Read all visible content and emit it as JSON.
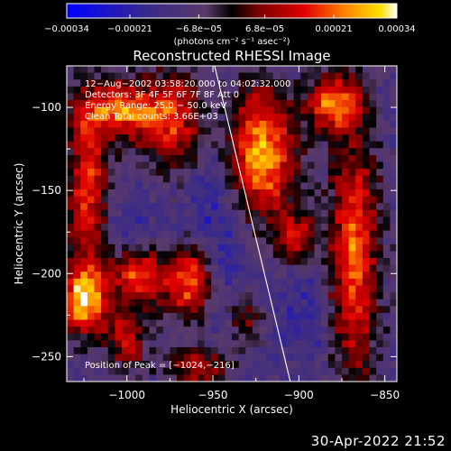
{
  "chart_data": {
    "type": "heatmap",
    "title": "Reconstructed RHESSI Image",
    "xlabel": "Heliocentric X (arcsec)",
    "ylabel": "Heliocentric Y (arcsec)",
    "xlim": [
      -1035,
      -843
    ],
    "ylim": [
      -265,
      -75
    ],
    "x_ticks": [
      -1000,
      -950,
      -900,
      -850
    ],
    "x_tick_labels": [
      "−1000",
      "−950",
      "−900",
      "−850"
    ],
    "y_ticks": [
      -100,
      -150,
      -200,
      -250
    ],
    "y_tick_labels": [
      "−100",
      "−150",
      "−200",
      "−250"
    ],
    "colorbar": {
      "min": -0.00034,
      "max": 0.00034,
      "tick_values": [
        -0.00034,
        -0.00021,
        -6.8e-05,
        6.8e-05,
        0.00021,
        0.00034
      ],
      "tick_labels": [
        "−0.00034",
        "−0.00021",
        "−6.8e−05",
        "6.8e−05",
        "0.00021",
        "0.00034"
      ],
      "unit_label": "(photons cm⁻² s⁻¹ asec⁻²)"
    },
    "annotations": [
      "12−Aug−2002 03:58:20.000 to 04:02:32.000",
      "Detectors: 3F 4F 5F 6F 7F 8F  Att 0",
      "Energy Range: 25.0 − 50.0 keV",
      "Clean     Total counts: 3.66E+03"
    ],
    "peak_label": "Position of Peak = [−1024,−216]",
    "peak_position": [
      -1024,
      -216
    ],
    "limb_line": [
      [
        -949,
        -75
      ],
      [
        -905,
        -265
      ]
    ],
    "blobs": [
      {
        "x": -1023,
        "y": -150,
        "sx": 9,
        "sy": 38,
        "a": 0.75
      },
      {
        "x": -1025,
        "y": -216,
        "sx": 10,
        "sy": 14,
        "a": 1.0
      },
      {
        "x": -1003,
        "y": -102,
        "sx": 16,
        "sy": 12,
        "a": 0.85
      },
      {
        "x": -973,
        "y": -110,
        "sx": 12,
        "sy": 22,
        "a": 0.7
      },
      {
        "x": -922,
        "y": -128,
        "sx": 14,
        "sy": 28,
        "a": 1.0
      },
      {
        "x": -880,
        "y": -97,
        "sx": 11,
        "sy": 12,
        "a": 0.85
      },
      {
        "x": -868,
        "y": -190,
        "sx": 10,
        "sy": 55,
        "a": 0.85
      },
      {
        "x": -993,
        "y": -202,
        "sx": 10,
        "sy": 12,
        "a": 0.8
      },
      {
        "x": -963,
        "y": -205,
        "sx": 10,
        "sy": 16,
        "a": 1.0
      },
      {
        "x": -1000,
        "y": -240,
        "sx": 9,
        "sy": 13,
        "a": 0.55
      },
      {
        "x": -958,
        "y": -256,
        "sx": 13,
        "sy": 10,
        "a": 0.6
      },
      {
        "x": -902,
        "y": -178,
        "sx": 8,
        "sy": 12,
        "a": 0.55
      },
      {
        "x": -932,
        "y": -228,
        "sx": 8,
        "sy": 10,
        "a": 0.45
      }
    ],
    "dips": [
      {
        "x": -950,
        "y": -180,
        "sx": 14,
        "sy": 45,
        "a": 0.55
      },
      {
        "x": -1000,
        "y": -170,
        "sx": 12,
        "sy": 14,
        "a": 0.35
      },
      {
        "x": -898,
        "y": -225,
        "sx": 12,
        "sy": 18,
        "a": 0.4
      }
    ]
  },
  "footer": {
    "timestamp": "30-Apr-2022 21:52"
  }
}
